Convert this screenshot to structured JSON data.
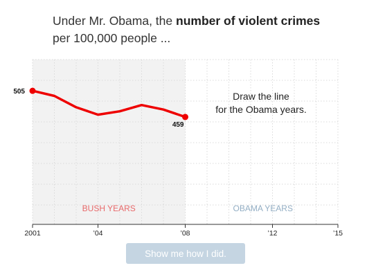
{
  "question": {
    "prefix": "Under Mr. Obama, the ",
    "bold": "number of violent crimes",
    "suffix": "per 100,000 people ..."
  },
  "chart_data": {
    "type": "line",
    "x_domain": [
      2001,
      2015
    ],
    "known_range": [
      2001,
      2008
    ],
    "x_ticks": [
      {
        "value": 2001,
        "label": "2001"
      },
      {
        "value": 2004,
        "label": "’04"
      },
      {
        "value": 2008,
        "label": "’08"
      },
      {
        "value": 2012,
        "label": "’12"
      },
      {
        "value": 2015,
        "label": "’15"
      }
    ],
    "series": [
      {
        "x": [
          2001,
          2002,
          2003,
          2004,
          2005,
          2006,
          2007,
          2008
        ],
        "values": [
          505,
          496,
          476,
          463,
          469,
          480,
          472,
          459
        ],
        "color": "#ee0000"
      }
    ],
    "point_labels": [
      {
        "x": 2001,
        "value": 505,
        "text": "505",
        "position": "left"
      },
      {
        "x": 2008,
        "value": 459,
        "text": "459",
        "position": "below-left"
      }
    ],
    "region_labels": {
      "past": "BUSH YEARS",
      "future": "OBAMA YEARS"
    },
    "instruction": [
      "Draw the line",
      "for the Obama years."
    ],
    "grid": true,
    "colors": {
      "line": "#ee0000",
      "past_fill": "#f2f2f2",
      "past_label": "#e8696a",
      "future_label": "#93aec4",
      "grid": "#d9d9d9"
    }
  },
  "button": {
    "label": "Show me how I did."
  }
}
